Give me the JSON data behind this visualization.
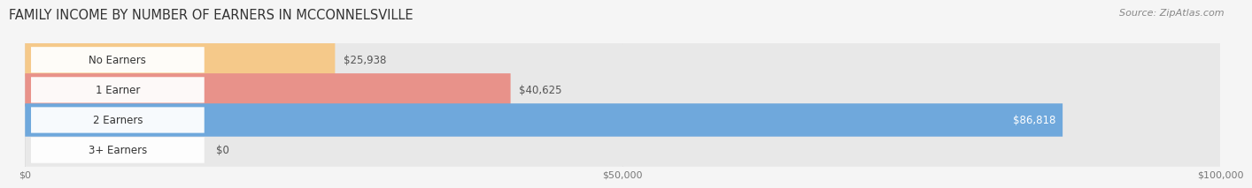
{
  "title": "FAMILY INCOME BY NUMBER OF EARNERS IN MCCONNELSVILLE",
  "source": "Source: ZipAtlas.com",
  "categories": [
    "No Earners",
    "1 Earner",
    "2 Earners",
    "3+ Earners"
  ],
  "values": [
    25938,
    40625,
    86818,
    0
  ],
  "bar_colors": [
    "#f5c98a",
    "#e8928a",
    "#6fa8dc",
    "#c4a8d4"
  ],
  "bar_bg_color": "#e8e8e8",
  "value_labels": [
    "$25,938",
    "$40,625",
    "$86,818",
    "$0"
  ],
  "label_inside": [
    false,
    false,
    true,
    false
  ],
  "label_colors_inside": [
    "#555555",
    "#555555",
    "#ffffff",
    "#555555"
  ],
  "xlim": [
    0,
    100000
  ],
  "xticks": [
    0,
    50000,
    100000
  ],
  "xtick_labels": [
    "$0",
    "$50,000",
    "$100,000"
  ],
  "bg_color": "#f5f5f5",
  "bar_height": 0.55,
  "title_fontsize": 10.5,
  "source_fontsize": 8,
  "label_fontsize": 8.5,
  "category_fontsize": 8.5
}
